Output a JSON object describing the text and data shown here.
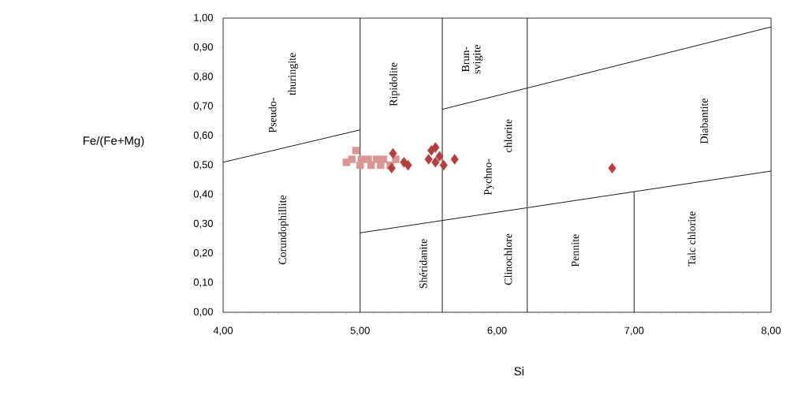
{
  "chart_data": {
    "type": "scatter",
    "xlabel": "Si",
    "ylabel": "Fe/(Fe+Mg)",
    "xlim": [
      4,
      8
    ],
    "ylim": [
      0,
      1
    ],
    "xticks": [
      {
        "value": 4,
        "label": "4,00"
      },
      {
        "value": 5,
        "label": "5,00"
      },
      {
        "value": 6,
        "label": "6,00"
      },
      {
        "value": 7,
        "label": "7,00"
      },
      {
        "value": 8,
        "label": "8,00"
      }
    ],
    "yticks": [
      {
        "value": 0,
        "label": "0,00"
      },
      {
        "value": 0.1,
        "label": "0,10"
      },
      {
        "value": 0.2,
        "label": "0,20"
      },
      {
        "value": 0.3,
        "label": "0,30"
      },
      {
        "value": 0.4,
        "label": "0,40"
      },
      {
        "value": 0.5,
        "label": "0,50"
      },
      {
        "value": 0.6,
        "label": "0,60"
      },
      {
        "value": 0.7,
        "label": "0,70"
      },
      {
        "value": 0.8,
        "label": "0,80"
      },
      {
        "value": 0.9,
        "label": "0,90"
      },
      {
        "value": 1,
        "label": "1,00"
      }
    ],
    "ref_lines": [
      {
        "axis": "x",
        "value": 5,
        "color": "#000000"
      },
      {
        "axis": "x",
        "value": 5.6,
        "color": "#000000"
      },
      {
        "axis": "x",
        "value": 6.22,
        "color": "#000000"
      }
    ],
    "series": [
      {
        "type": "line",
        "color": "#000000",
        "marker": "none",
        "x": [
          4,
          5
        ],
        "values": [
          0.51,
          0.62
        ]
      },
      {
        "type": "line",
        "color": "#000000",
        "marker": "none",
        "x": [
          5.6,
          8
        ],
        "values": [
          0.69,
          0.97
        ]
      },
      {
        "type": "line",
        "color": "#000000",
        "marker": "none",
        "x": [
          5,
          8
        ],
        "values": [
          0.27,
          0.48
        ]
      },
      {
        "type": "line",
        "color": "#000000",
        "marker": "none",
        "x": [
          7,
          7
        ],
        "values": [
          0,
          0.41
        ]
      },
      {
        "color": "#d99694",
        "marker": "square",
        "x": [
          4.9,
          4.94,
          4.97,
          5.01,
          5.06,
          5.12,
          5.17,
          5.23,
          5.26,
          5.0,
          5.08,
          5.15,
          5.22
        ],
        "values": [
          0.51,
          0.52,
          0.55,
          0.52,
          0.52,
          0.52,
          0.52,
          null,
          0.52,
          0.5,
          0.5,
          0.5,
          0.5
        ]
      },
      {
        "color": "#b3403e",
        "marker": "diamond",
        "x": [
          5.24,
          5.23,
          5.32,
          5.35,
          5.52,
          5.55,
          5.5,
          5.55,
          5.61,
          5.58,
          5.69,
          6.84
        ],
        "values": [
          0.54,
          0.49,
          0.51,
          0.5,
          0.55,
          0.56,
          0.52,
          0.51,
          0.5,
          0.53,
          0.52,
          0.49
        ]
      }
    ],
    "annotations": [
      "Pseudo-",
      "thuringite",
      "Corundophillite",
      "Ripidolite",
      "Shéridanite",
      "Brun-",
      "svigite",
      "Pychno-",
      "chlorite",
      "Clinochlore",
      "Diabantite",
      "Pennite",
      "Talc chlorite"
    ]
  }
}
